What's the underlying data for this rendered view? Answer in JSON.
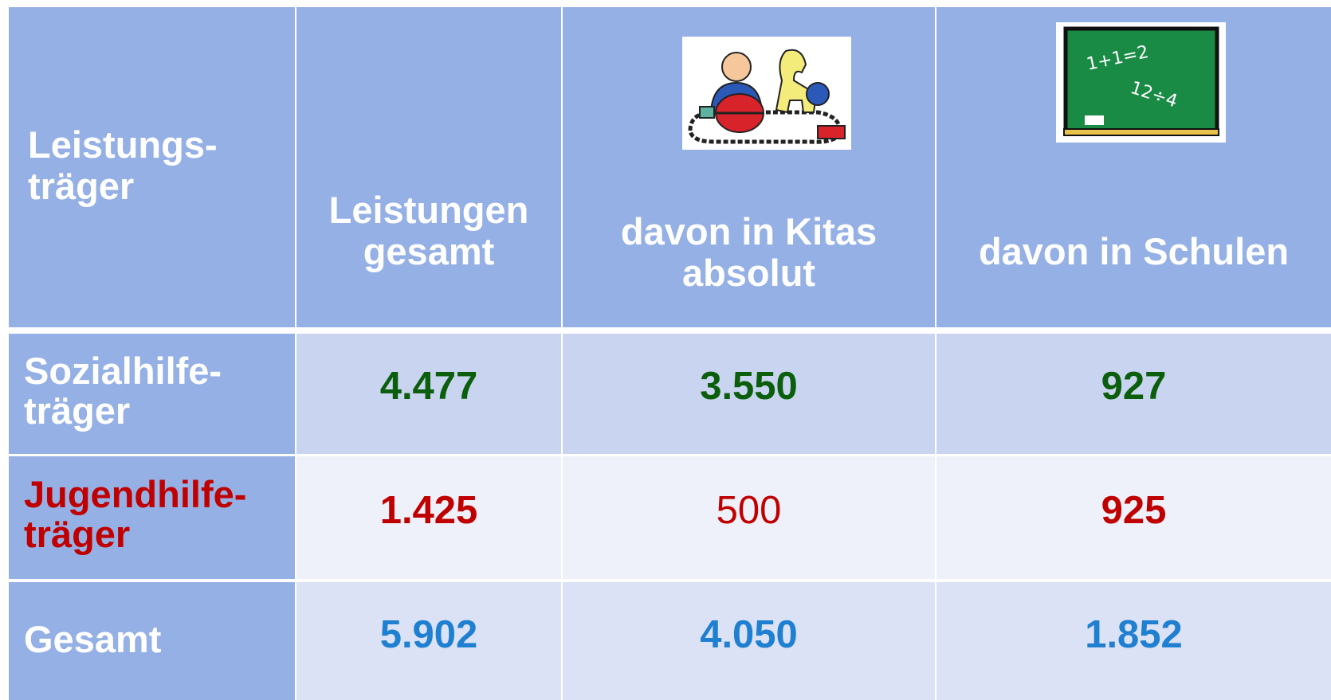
{
  "table": {
    "header": [
      "Leistungs-\nträger",
      "Leistungen\ngesamt",
      "davon in Kitas\nabsolut",
      "davon in Schulen"
    ],
    "rows": [
      [
        "Sozialhilfe-\nträger",
        "4.477",
        "3.550",
        "927"
      ],
      [
        "Jugendhilfe-\nträger",
        "1.425",
        "500",
        "925"
      ],
      [
        "Gesamt",
        "5.902",
        "4.050",
        "1.852"
      ]
    ]
  }
}
